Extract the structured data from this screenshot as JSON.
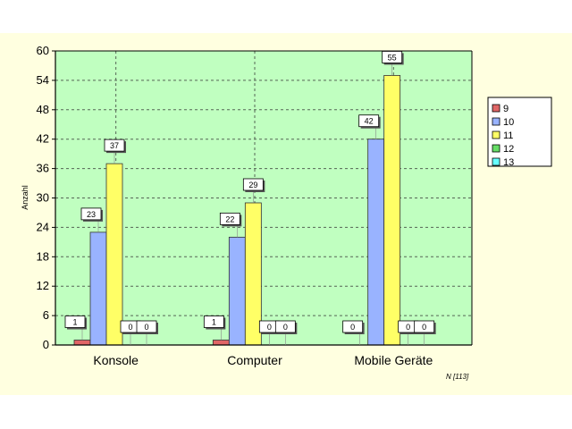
{
  "chart_data": {
    "type": "bar",
    "categories": [
      "Konsole",
      "Computer",
      "Mobile Geräte"
    ],
    "series": [
      {
        "name": "9",
        "color": "#e06666",
        "values": [
          1,
          1,
          0
        ]
      },
      {
        "name": "10",
        "color": "#99b3ff",
        "values": [
          23,
          22,
          42
        ]
      },
      {
        "name": "11",
        "color": "#ffff66",
        "values": [
          37,
          29,
          55
        ]
      },
      {
        "name": "12",
        "color": "#66dd66",
        "values": [
          0,
          0,
          0
        ]
      },
      {
        "name": "13",
        "color": "#66ffff",
        "values": [
          0,
          0,
          0
        ]
      }
    ],
    "ylabel": "Anzahl",
    "ylim": [
      0,
      60
    ],
    "yticks": [
      0,
      6,
      12,
      18,
      24,
      30,
      36,
      42,
      48,
      54,
      60
    ],
    "grid": true,
    "legend_position": "right",
    "plot_background": "#c0ffc0",
    "note": "N [113]"
  }
}
